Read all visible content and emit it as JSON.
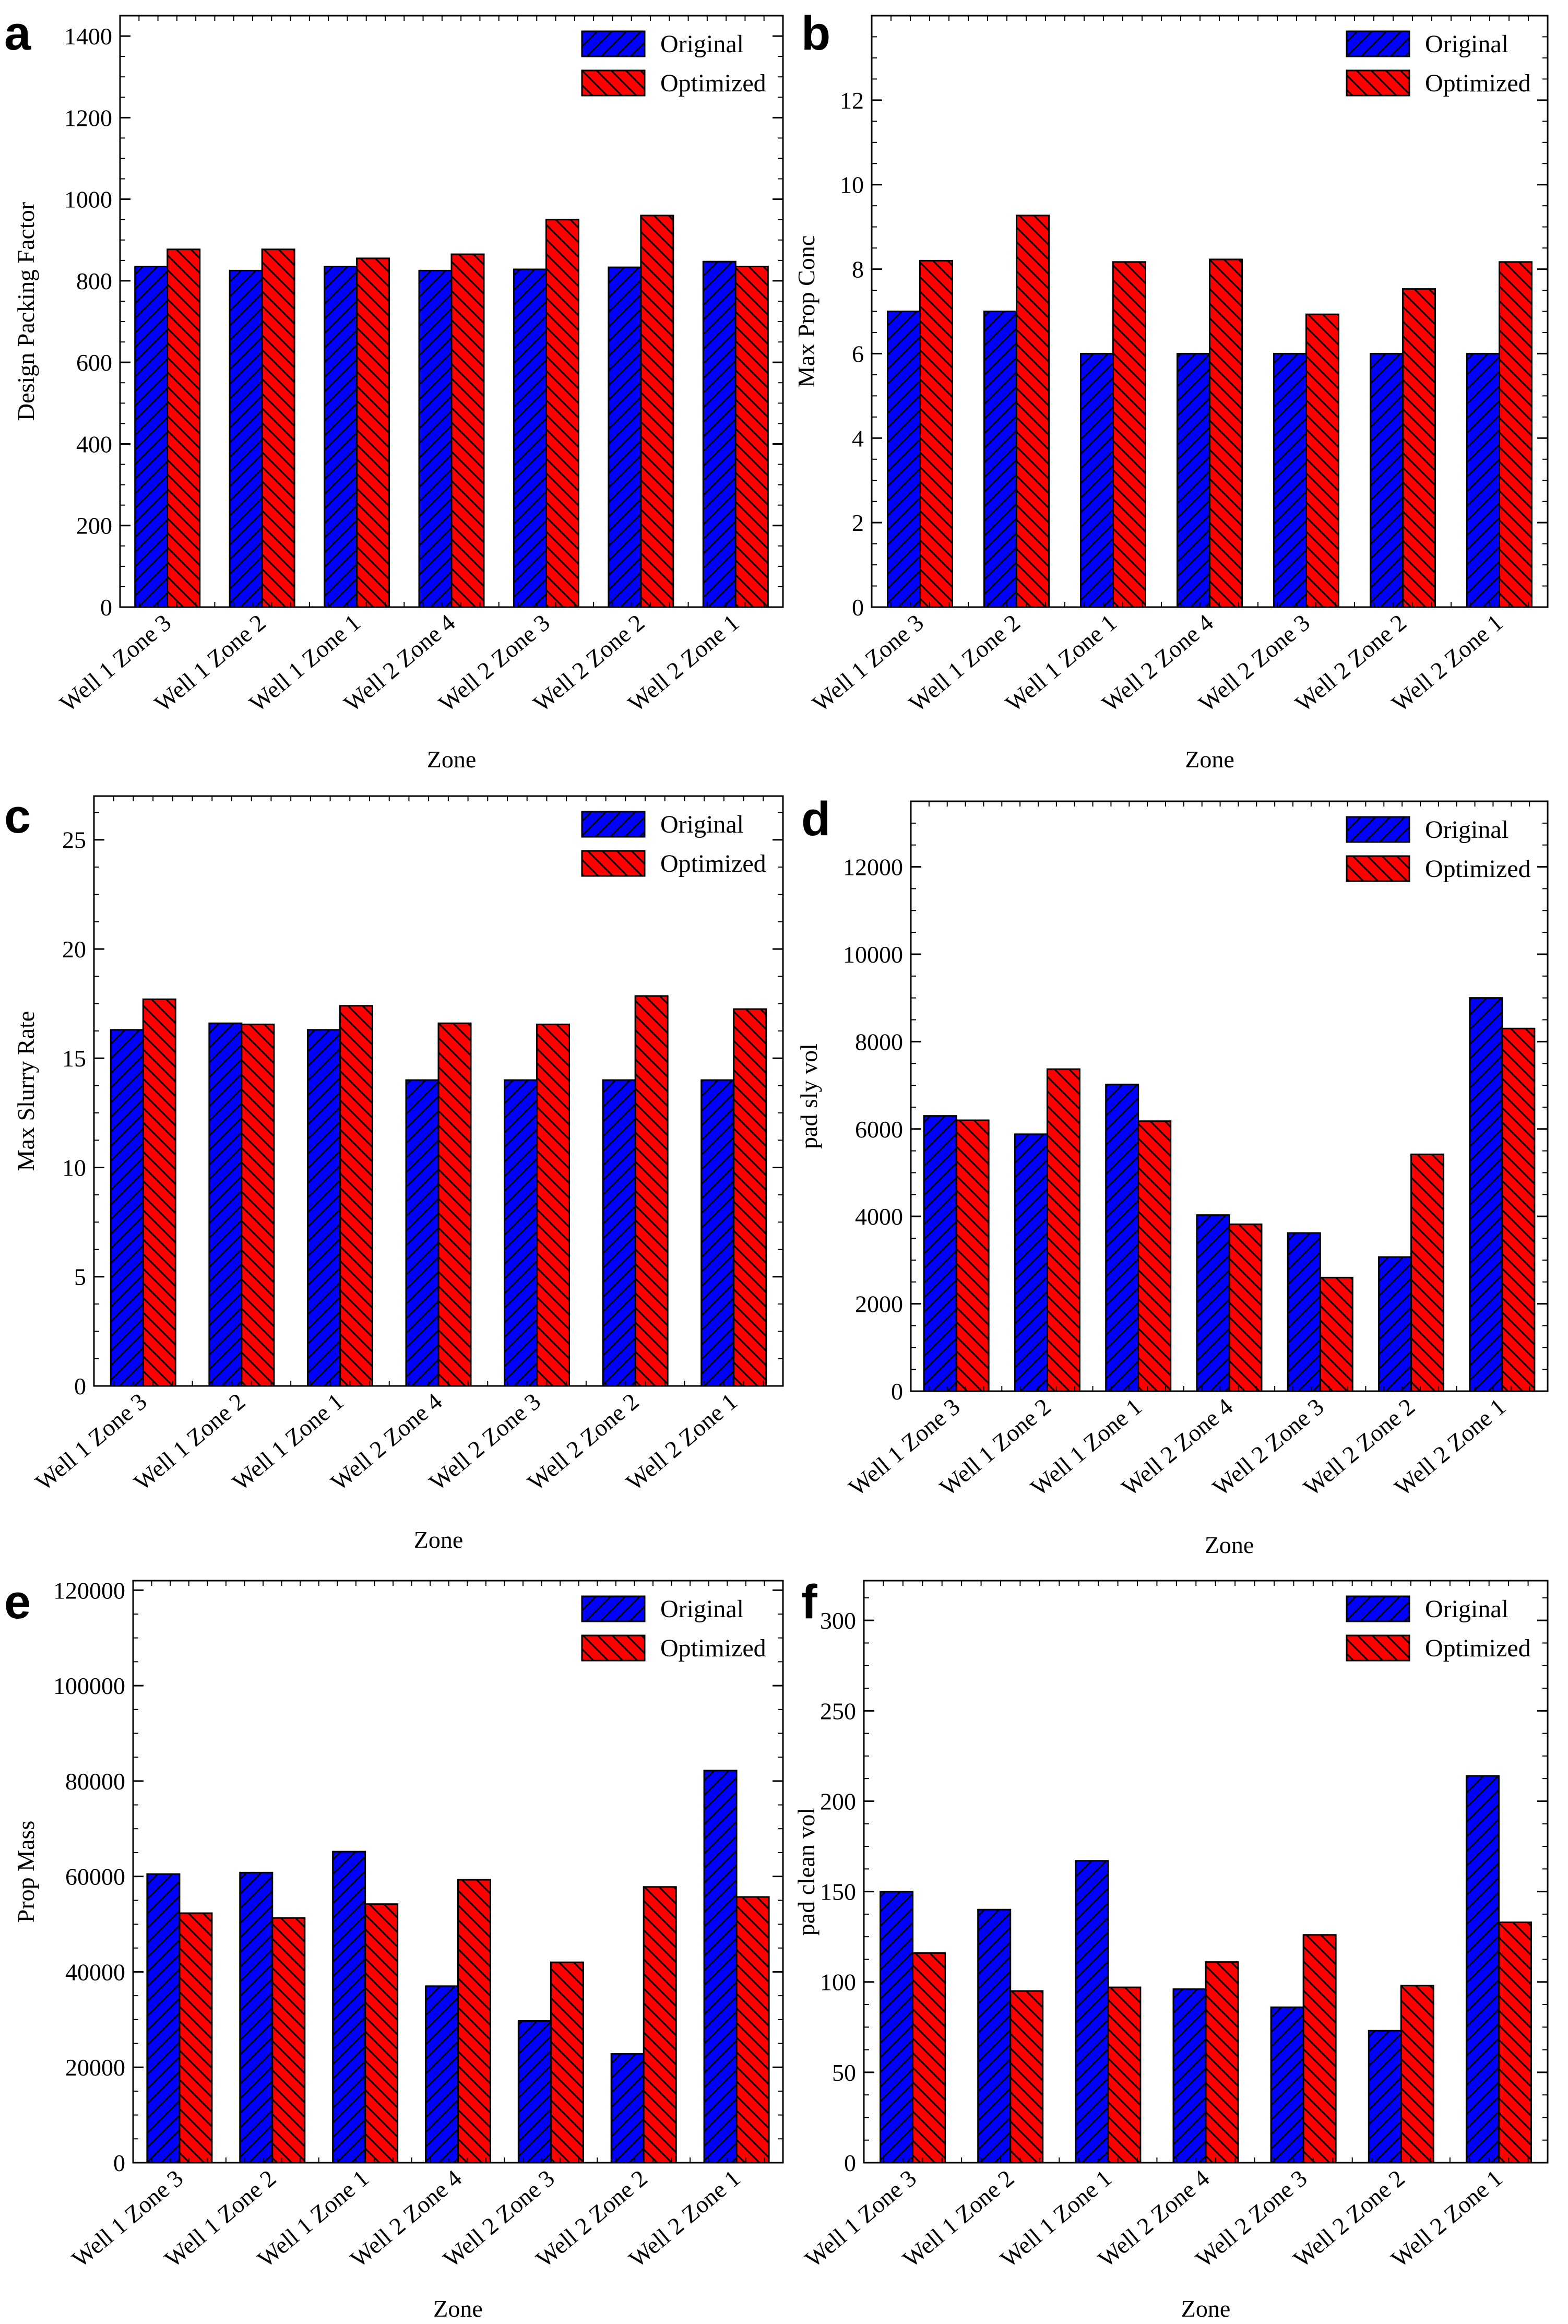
{
  "colors": {
    "original": "#0000ff",
    "optimized": "#ff0000",
    "axis": "#000000"
  },
  "chart_data": [
    {
      "panel": "a",
      "type": "bar",
      "xlabel": "Zone",
      "ylabel": "Design Packing Factor",
      "ylim": [
        0,
        1450
      ],
      "yticks": [
        0,
        200,
        400,
        600,
        800,
        1000,
        1200,
        1400
      ],
      "categories": [
        "Well 1 Zone 3",
        "Well 1 Zone 2",
        "Well 1 Zone 1",
        "Well 2 Zone 4",
        "Well 2 Zone 3",
        "Well 2 Zone 2",
        "Well 2 Zone 1"
      ],
      "legend": [
        "Original",
        "Optimized"
      ],
      "series": [
        {
          "name": "Original",
          "values": [
            835,
            825,
            835,
            825,
            828,
            833,
            847
          ]
        },
        {
          "name": "Optimized",
          "values": [
            877,
            877,
            855,
            865,
            950,
            960,
            835
          ]
        }
      ]
    },
    {
      "panel": "b",
      "type": "bar",
      "xlabel": "Zone",
      "ylabel": "Max Prop Conc",
      "ylim": [
        0,
        14
      ],
      "yticks": [
        0,
        2,
        4,
        6,
        8,
        10,
        12
      ],
      "categories": [
        "Well 1 Zone 3",
        "Well 1 Zone 2",
        "Well 1 Zone 1",
        "Well 2 Zone 4",
        "Well 2 Zone 3",
        "Well 2 Zone 2",
        "Well 2 Zone 1"
      ],
      "legend": [
        "Original",
        "Optimized"
      ],
      "series": [
        {
          "name": "Original",
          "values": [
            7.0,
            7.0,
            6.0,
            6.0,
            6.0,
            6.0,
            6.0
          ]
        },
        {
          "name": "Optimized",
          "values": [
            8.2,
            9.27,
            8.17,
            8.23,
            6.93,
            7.53,
            8.17
          ]
        }
      ]
    },
    {
      "panel": "c",
      "type": "bar",
      "xlabel": "Zone",
      "ylabel": "Max Slurry Rate",
      "ylim": [
        0,
        27
      ],
      "yticks": [
        0,
        5,
        10,
        15,
        20,
        25
      ],
      "categories": [
        "Well 1 Zone 3",
        "Well 1 Zone 2",
        "Well 1 Zone 1",
        "Well 2 Zone 4",
        "Well 2 Zone 3",
        "Well 2 Zone 2",
        "Well 2 Zone 1"
      ],
      "legend": [
        "Original",
        "Optimized"
      ],
      "series": [
        {
          "name": "Original",
          "values": [
            16.3,
            16.6,
            16.3,
            14.0,
            14.0,
            14.0,
            14.0
          ]
        },
        {
          "name": "Optimized",
          "values": [
            17.7,
            16.55,
            17.4,
            16.6,
            16.55,
            17.85,
            17.25
          ]
        }
      ]
    },
    {
      "panel": "d",
      "type": "bar",
      "xlabel": "Zone",
      "ylabel": "pad sly vol",
      "ylim": [
        0,
        13500
      ],
      "yticks": [
        0,
        2000,
        4000,
        6000,
        8000,
        10000,
        12000
      ],
      "categories": [
        "Well 1 Zone 3",
        "Well 1 Zone 2",
        "Well 1 Zone 1",
        "Well 2 Zone 4",
        "Well 2 Zone 3",
        "Well 2 Zone 2",
        "Well 2 Zone 1"
      ],
      "legend": [
        "Original",
        "Optimized"
      ],
      "series": [
        {
          "name": "Original",
          "values": [
            6300,
            5880,
            7020,
            4030,
            3620,
            3070,
            9000
          ]
        },
        {
          "name": "Optimized",
          "values": [
            6200,
            7370,
            6180,
            3820,
            2600,
            5420,
            8300
          ]
        }
      ]
    },
    {
      "panel": "e",
      "type": "bar",
      "xlabel": "Zone",
      "ylabel": "Prop Mass",
      "ylim": [
        0,
        122000
      ],
      "yticks": [
        0,
        20000,
        40000,
        60000,
        80000,
        100000,
        120000
      ],
      "categories": [
        "Well 1 Zone 3",
        "Well 1 Zone 2",
        "Well 1 Zone 1",
        "Well 2 Zone 4",
        "Well 2 Zone 3",
        "Well 2 Zone 2",
        "Well 2 Zone 1"
      ],
      "legend": [
        "Original",
        "Optimized"
      ],
      "series": [
        {
          "name": "Original",
          "values": [
            60500,
            60800,
            65200,
            37000,
            29700,
            22800,
            82200
          ]
        },
        {
          "name": "Optimized",
          "values": [
            52300,
            51300,
            54200,
            59300,
            42000,
            57800,
            55700
          ]
        }
      ]
    },
    {
      "panel": "f",
      "type": "bar",
      "xlabel": "Zone",
      "ylabel": "pad clean vol",
      "ylim": [
        0,
        322
      ],
      "yticks": [
        0,
        50,
        100,
        150,
        200,
        250,
        300
      ],
      "categories": [
        "Well 1 Zone 3",
        "Well 1 Zone 2",
        "Well 1 Zone 1",
        "Well 2 Zone 4",
        "Well 2 Zone 3",
        "Well 2 Zone 2",
        "Well 2 Zone 1"
      ],
      "legend": [
        "Original",
        "Optimized"
      ],
      "series": [
        {
          "name": "Original",
          "values": [
            150,
            140,
            167,
            96,
            86,
            73,
            214
          ]
        },
        {
          "name": "Optimized",
          "values": [
            116,
            95,
            97,
            111,
            126,
            98,
            133
          ]
        }
      ]
    }
  ]
}
